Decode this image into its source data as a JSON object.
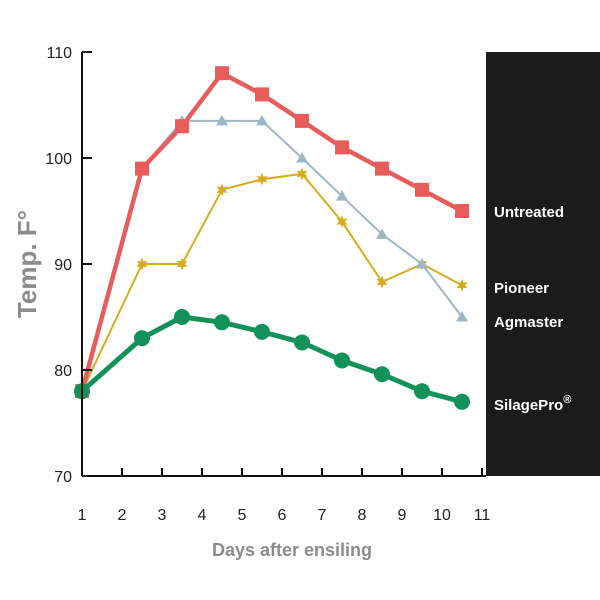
{
  "chart_data": {
    "type": "line",
    "xlabel": "Days after ensiling",
    "ylabel": "Temp. F°",
    "xlim": [
      1,
      11
    ],
    "ylim": [
      70,
      110
    ],
    "x_ticks": [
      "1",
      "2",
      "3",
      "4",
      "5",
      "6",
      "7",
      "8",
      "9",
      "10",
      "11"
    ],
    "y_ticks": [
      "70",
      "80",
      "90",
      "100",
      "110"
    ],
    "x": [
      1,
      2.5,
      3.5,
      4.5,
      5.5,
      6.5,
      7.5,
      8.5,
      9.5,
      10.5
    ],
    "legend_position": "right, on black panel",
    "series": [
      {
        "name": "Untreated",
        "color": "#e85c5c",
        "marker": "square",
        "values": [
          78,
          99,
          103,
          108,
          106,
          103.5,
          101,
          99,
          97,
          95
        ]
      },
      {
        "name": "Pioneer",
        "color": "#d4ac1e",
        "marker": "star",
        "values": [
          78,
          90,
          90,
          97,
          98,
          98.5,
          94,
          88.3,
          90,
          88
        ]
      },
      {
        "name": "Agmaster",
        "color": "#9fb6c6",
        "marker": "triangle",
        "values": [
          78,
          99,
          103.5,
          103.5,
          103.5,
          100,
          96.4,
          92.8,
          90,
          85
        ]
      },
      {
        "name": "SilagePro",
        "name_suffix": "®",
        "color": "#13915a",
        "marker": "circle",
        "values": [
          78,
          83,
          85,
          84.5,
          83.6,
          82.6,
          80.9,
          79.6,
          78,
          77
        ]
      }
    ]
  }
}
